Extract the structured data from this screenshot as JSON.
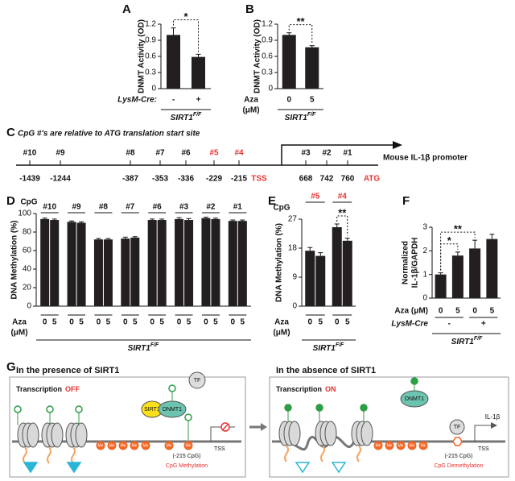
{
  "chart_data": [
    {
      "type": "bar",
      "panel": "A",
      "ylabel": "DNMT Activity (OD)",
      "categories": [
        "-",
        "+"
      ],
      "x_row_label": "LysM-Cre:",
      "values": [
        1.0,
        0.59
      ],
      "errors": [
        0.13,
        0.05
      ],
      "color": "#231f20",
      "ylim": [
        0,
        1.2
      ],
      "yticks": [
        0,
        0.3,
        0.6,
        0.9,
        1.2
      ],
      "significance": [
        {
          "label": "*",
          "between": [
            0,
            1
          ]
        }
      ],
      "genotype": "SIRT1",
      "genotype_sup": "F/F"
    },
    {
      "type": "bar",
      "panel": "B",
      "ylabel": "DNMT Activity (OD)",
      "categories": [
        "0",
        "5"
      ],
      "x_row_label": [
        "Aza",
        "(μM)"
      ],
      "values": [
        1.0,
        0.77
      ],
      "errors": [
        0.04,
        0.03
      ],
      "color": "#231f20",
      "ylim": [
        0,
        1.2
      ],
      "yticks": [
        0,
        0.3,
        0.6,
        0.9,
        1.2
      ],
      "significance": [
        {
          "label": "**",
          "between": [
            0,
            1
          ]
        }
      ],
      "genotype": "SIRT1",
      "genotype_sup": "F/F"
    },
    {
      "type": "grouped_bar",
      "panel": "D",
      "ylabel": "DNA Methylation (%)",
      "group_label": "CpG",
      "categories": [
        "#10",
        "#9",
        "#8",
        "#7",
        "#6",
        "#3",
        "#2",
        "#1"
      ],
      "x_row_label": [
        "Aza",
        "(μM)"
      ],
      "series": [
        {
          "name": "0",
          "values": [
            94,
            91,
            72,
            73,
            93,
            94,
            95,
            92
          ],
          "errors": [
            1,
            1,
            1,
            1.5,
            1,
            1.5,
            1,
            1
          ]
        },
        {
          "name": "5",
          "values": [
            93,
            90,
            72,
            74,
            93,
            93,
            94,
            92
          ],
          "errors": [
            1,
            1,
            1,
            1,
            1,
            1.5,
            1,
            1
          ]
        }
      ],
      "color": "#231f20",
      "ylim": [
        0,
        100
      ],
      "yticks": [
        0,
        20,
        40,
        60,
        80,
        100
      ],
      "genotype": "SIRT1",
      "genotype_sup": "F/F"
    },
    {
      "type": "grouped_bar",
      "panel": "E",
      "ylabel": "DNA Methylation (%)",
      "group_label": "CpG",
      "categories": [
        "#5",
        "#4"
      ],
      "category_color": "#e8312f",
      "x_row_label": [
        "Aza",
        "(μM)"
      ],
      "series": [
        {
          "name": "0",
          "values": [
            17.2,
            24.5
          ],
          "errors": [
            1,
            1
          ]
        },
        {
          "name": "5",
          "values": [
            15.6,
            20.3
          ],
          "errors": [
            1,
            0.8
          ]
        }
      ],
      "color": "#231f20",
      "ylim": [
        0,
        27
      ],
      "yticks": [
        0,
        9,
        18,
        27
      ],
      "significance": [
        {
          "label": "**",
          "between": [
            2,
            3
          ]
        }
      ],
      "genotype": "SIRT1",
      "genotype_sup": "F/F"
    },
    {
      "type": "bar",
      "panel": "F",
      "ylabel": [
        "Normalized",
        "IL-1β/GAPDH"
      ],
      "categories": [
        "0",
        "5",
        "0",
        "5"
      ],
      "x_row_label": "Aza (μM)",
      "group_row_label": "LysM-Cre",
      "groups": [
        "-",
        "+"
      ],
      "values": [
        1.0,
        1.8,
        2.1,
        2.5
      ],
      "errors": [
        0.07,
        0.15,
        0.35,
        0.2
      ],
      "color": "#231f20",
      "ylim": [
        0,
        3
      ],
      "yticks": [
        0,
        1,
        2,
        3
      ],
      "significance": [
        {
          "label": "*",
          "between": [
            0,
            1
          ]
        },
        {
          "label": "**",
          "between": [
            0,
            2
          ]
        }
      ],
      "genotype": "SIRT1",
      "genotype_sup": "F/F"
    }
  ],
  "promoter": {
    "panel": "C",
    "note": "CpG #'s are relative to ATG translation start site",
    "gene": "Mouse IL-1β promoter",
    "sites": [
      {
        "label": "#10",
        "position": -1439
      },
      {
        "label": "#9",
        "position": -1244
      },
      {
        "label": "#8",
        "position": -387
      },
      {
        "label": "#7",
        "position": -353
      },
      {
        "label": "#6",
        "position": -336
      },
      {
        "label": "#5",
        "position": -229,
        "color": "#e8312f"
      },
      {
        "label": "#4",
        "position": -215,
        "color": "#e8312f"
      },
      {
        "label": "#3",
        "position": 668
      },
      {
        "label": "#2",
        "position": 742
      },
      {
        "label": "#1",
        "position": 760
      }
    ],
    "tss": "TSS",
    "atg": "ATG",
    "landmark_color": "#e8312f"
  },
  "mechanism": {
    "panel": "G",
    "mark": "Me",
    "left": {
      "title": "In the presence of SIRT1",
      "state_label": "Transcription",
      "state": "OFF",
      "sirt1": "SIRT1",
      "dnmt1": "DNMT1",
      "tf": "TF",
      "site": "(-215 CpG)",
      "tss": "TSS",
      "caption": "CpG Methylation"
    },
    "right": {
      "title": "In the absence of SIRT1",
      "state_label": "Transcription",
      "state": "ON",
      "dnmt1": "DNMT1",
      "tf": "TF",
      "site": "(-215 CpG)",
      "tss": "TSS",
      "gene": "IL-1β",
      "caption": "CpG Demethylation"
    }
  }
}
